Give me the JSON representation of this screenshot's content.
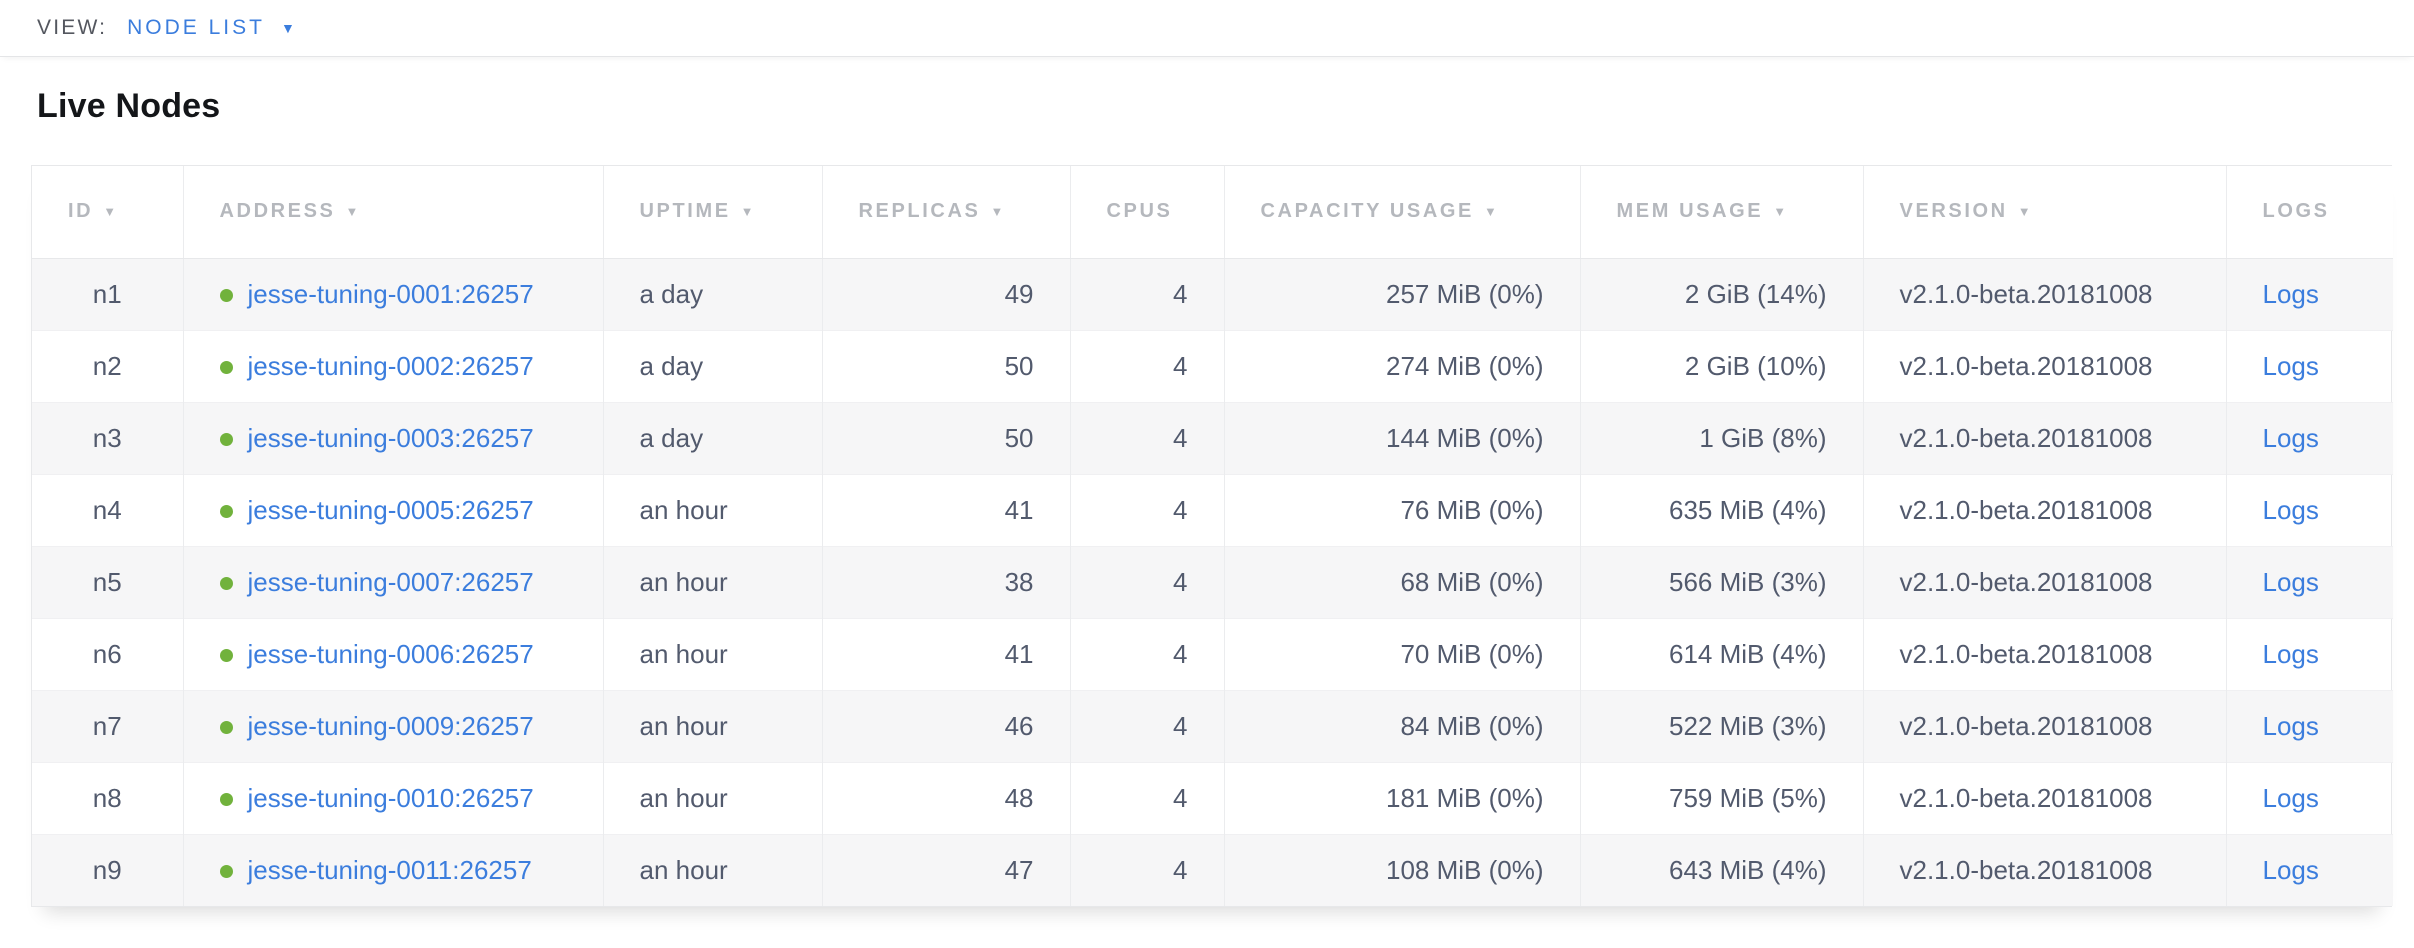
{
  "view_bar": {
    "label": "VIEW:",
    "selected": "NODE LIST"
  },
  "page": {
    "title": "Live Nodes"
  },
  "colors": {
    "accent_blue": "#3b7ddd",
    "healthy_green": "#71b23c",
    "header_text": "#b5b8bd",
    "cell_text": "#525a6d",
    "row_stripe": "#f6f6f7"
  },
  "table": {
    "columns": [
      {
        "key": "id",
        "label": "ID",
        "sortable": true
      },
      {
        "key": "address",
        "label": "ADDRESS",
        "sortable": true
      },
      {
        "key": "uptime",
        "label": "UPTIME",
        "sortable": true
      },
      {
        "key": "replicas",
        "label": "REPLICAS",
        "sortable": true
      },
      {
        "key": "cpus",
        "label": "CPUS",
        "sortable": false
      },
      {
        "key": "capacity_usage",
        "label": "CAPACITY USAGE",
        "sortable": true
      },
      {
        "key": "mem_usage",
        "label": "MEM USAGE",
        "sortable": true
      },
      {
        "key": "version",
        "label": "VERSION",
        "sortable": true
      },
      {
        "key": "logs",
        "label": "LOGS",
        "sortable": false
      }
    ],
    "rows": [
      {
        "id": "n1",
        "status": "healthy",
        "address": "jesse-tuning-0001:26257",
        "uptime": "a day",
        "replicas": "49",
        "cpus": "4",
        "capacity_usage": "257 MiB (0%)",
        "mem_usage": "2 GiB (14%)",
        "version": "v2.1.0-beta.20181008",
        "logs_label": "Logs"
      },
      {
        "id": "n2",
        "status": "healthy",
        "address": "jesse-tuning-0002:26257",
        "uptime": "a day",
        "replicas": "50",
        "cpus": "4",
        "capacity_usage": "274 MiB (0%)",
        "mem_usage": "2 GiB (10%)",
        "version": "v2.1.0-beta.20181008",
        "logs_label": "Logs"
      },
      {
        "id": "n3",
        "status": "healthy",
        "address": "jesse-tuning-0003:26257",
        "uptime": "a day",
        "replicas": "50",
        "cpus": "4",
        "capacity_usage": "144 MiB (0%)",
        "mem_usage": "1 GiB (8%)",
        "version": "v2.1.0-beta.20181008",
        "logs_label": "Logs"
      },
      {
        "id": "n4",
        "status": "healthy",
        "address": "jesse-tuning-0005:26257",
        "uptime": "an hour",
        "replicas": "41",
        "cpus": "4",
        "capacity_usage": "76 MiB (0%)",
        "mem_usage": "635 MiB (4%)",
        "version": "v2.1.0-beta.20181008",
        "logs_label": "Logs"
      },
      {
        "id": "n5",
        "status": "healthy",
        "address": "jesse-tuning-0007:26257",
        "uptime": "an hour",
        "replicas": "38",
        "cpus": "4",
        "capacity_usage": "68 MiB (0%)",
        "mem_usage": "566 MiB (3%)",
        "version": "v2.1.0-beta.20181008",
        "logs_label": "Logs"
      },
      {
        "id": "n6",
        "status": "healthy",
        "address": "jesse-tuning-0006:26257",
        "uptime": "an hour",
        "replicas": "41",
        "cpus": "4",
        "capacity_usage": "70 MiB (0%)",
        "mem_usage": "614 MiB (4%)",
        "version": "v2.1.0-beta.20181008",
        "logs_label": "Logs"
      },
      {
        "id": "n7",
        "status": "healthy",
        "address": "jesse-tuning-0009:26257",
        "uptime": "an hour",
        "replicas": "46",
        "cpus": "4",
        "capacity_usage": "84 MiB (0%)",
        "mem_usage": "522 MiB (3%)",
        "version": "v2.1.0-beta.20181008",
        "logs_label": "Logs"
      },
      {
        "id": "n8",
        "status": "healthy",
        "address": "jesse-tuning-0010:26257",
        "uptime": "an hour",
        "replicas": "48",
        "cpus": "4",
        "capacity_usage": "181 MiB (0%)",
        "mem_usage": "759 MiB (5%)",
        "version": "v2.1.0-beta.20181008",
        "logs_label": "Logs"
      },
      {
        "id": "n9",
        "status": "healthy",
        "address": "jesse-tuning-0011:26257",
        "uptime": "an hour",
        "replicas": "47",
        "cpus": "4",
        "capacity_usage": "108 MiB (0%)",
        "mem_usage": "643 MiB (4%)",
        "version": "v2.1.0-beta.20181008",
        "logs_label": "Logs"
      }
    ]
  }
}
